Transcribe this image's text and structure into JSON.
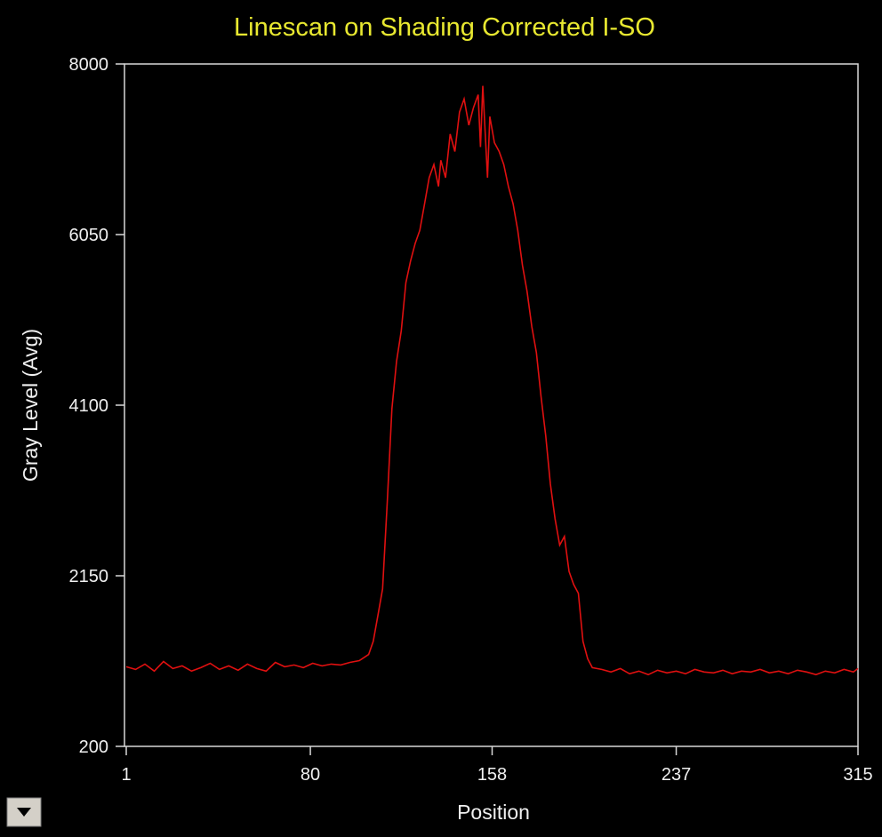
{
  "chart_data": {
    "type": "line",
    "title": "Linescan on Shading Corrected I-SO",
    "x_label": "Position",
    "y_label": "Gray Level (Avg)",
    "color": "#e01010",
    "x": [
      1,
      5,
      9,
      13,
      17,
      21,
      25,
      29,
      33,
      37,
      41,
      45,
      49,
      53,
      57,
      61,
      65,
      69,
      73,
      77,
      81,
      85,
      89,
      93,
      97,
      101,
      105,
      107,
      109,
      111,
      113,
      115,
      117,
      119,
      121,
      123,
      125,
      127,
      129,
      131,
      133,
      135,
      136,
      138,
      140,
      142,
      144,
      146,
      148,
      150,
      152,
      153,
      154,
      156,
      157,
      159,
      161,
      163,
      165,
      167,
      169,
      171,
      173,
      175,
      177,
      179,
      181,
      183,
      185,
      187,
      189,
      191,
      193,
      195,
      197,
      199,
      201,
      205,
      209,
      213,
      217,
      221,
      225,
      229,
      233,
      237,
      241,
      245,
      249,
      253,
      257,
      261,
      265,
      269,
      273,
      277,
      281,
      285,
      289,
      293,
      297,
      301,
      305,
      309,
      313,
      315
    ],
    "values": [
      1110,
      1080,
      1140,
      1060,
      1170,
      1090,
      1120,
      1060,
      1100,
      1150,
      1080,
      1120,
      1070,
      1140,
      1090,
      1060,
      1160,
      1110,
      1130,
      1100,
      1150,
      1120,
      1140,
      1130,
      1160,
      1180,
      1250,
      1400,
      1700,
      2000,
      3000,
      4060,
      4600,
      4950,
      5500,
      5750,
      5950,
      6100,
      6400,
      6700,
      6850,
      6600,
      6900,
      6700,
      7200,
      7000,
      7450,
      7600,
      7300,
      7500,
      7650,
      7050,
      7750,
      6700,
      7400,
      7100,
      7000,
      6850,
      6600,
      6400,
      6100,
      5700,
      5400,
      5000,
      4700,
      4200,
      3750,
      3200,
      2800,
      2500,
      2600,
      2200,
      2050,
      1950,
      1400,
      1200,
      1100,
      1080,
      1050,
      1090,
      1030,
      1060,
      1020,
      1070,
      1040,
      1060,
      1030,
      1080,
      1050,
      1040,
      1070,
      1030,
      1060,
      1050,
      1080,
      1040,
      1060,
      1030,
      1070,
      1050,
      1020,
      1060,
      1040,
      1080,
      1050,
      1090
    ],
    "xlim": [
      1,
      315
    ],
    "xticks": [
      1,
      80,
      158,
      237,
      315
    ],
    "ylim": [
      200,
      8000
    ],
    "yticks": [
      200,
      2150,
      4100,
      6050,
      8000
    ]
  }
}
